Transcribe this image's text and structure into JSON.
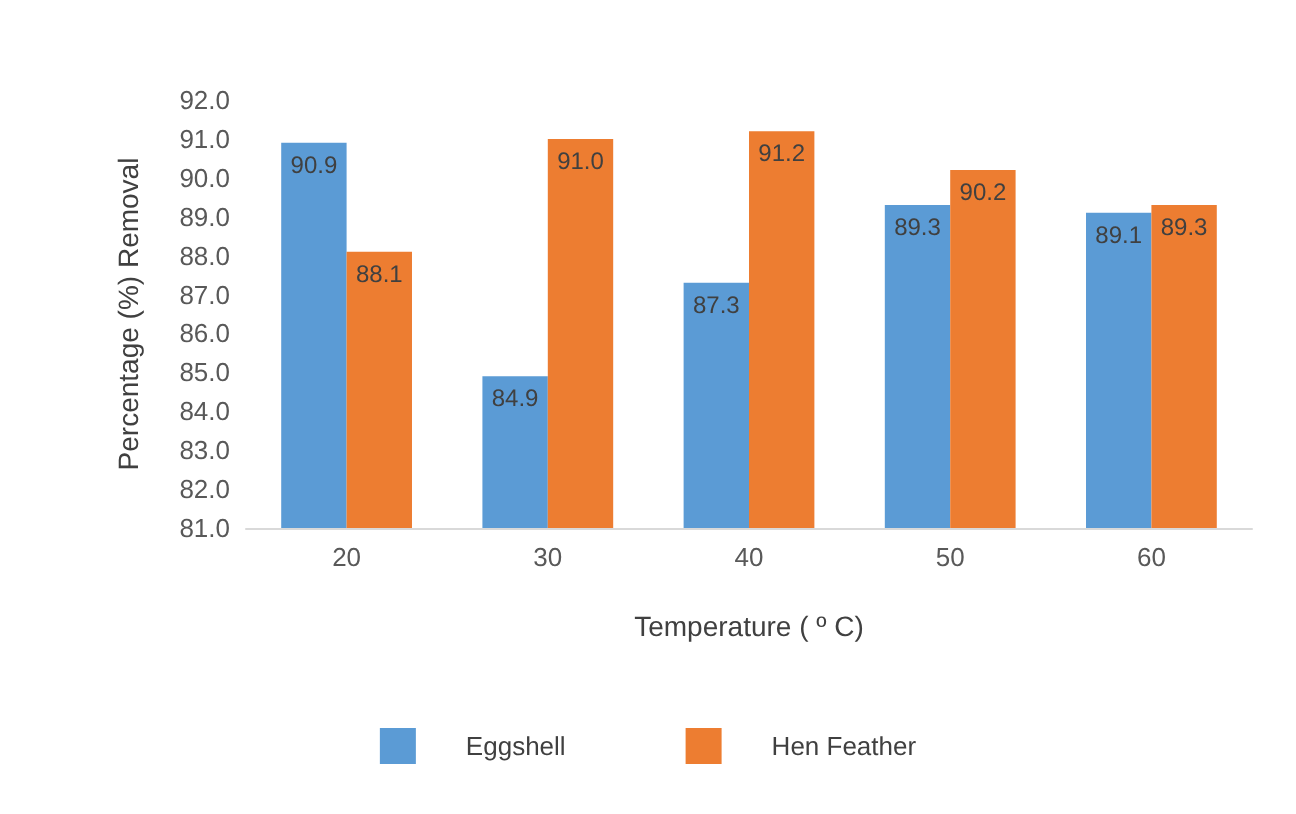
{
  "chart_data": {
    "type": "bar",
    "xlabel": "Temperature ( º C)",
    "ylabel": "Percentage (%) Removal",
    "categories": [
      "20",
      "30",
      "40",
      "50",
      "60"
    ],
    "series": [
      {
        "name": "Eggshell",
        "color": "#5b9bd5",
        "values": [
          90.9,
          84.9,
          87.3,
          89.3,
          89.1
        ],
        "value_labels": [
          "90.9",
          "84.9",
          "87.3",
          "89.3",
          "89.1"
        ]
      },
      {
        "name": "Hen Feather",
        "color": "#ed7d31",
        "values": [
          88.1,
          91.0,
          91.2,
          90.2,
          89.3
        ],
        "value_labels": [
          "88.1",
          "91.0",
          "91.2",
          "90.2",
          "89.3"
        ]
      }
    ],
    "ylim": [
      81,
      92
    ],
    "yticks": [
      {
        "value": 81,
        "label": "81.0"
      },
      {
        "value": 82,
        "label": "82.0"
      },
      {
        "value": 83,
        "label": "83.0"
      },
      {
        "value": 84,
        "label": "84.0"
      },
      {
        "value": 85,
        "label": "85.0"
      },
      {
        "value": 86,
        "label": "86.0"
      },
      {
        "value": 87,
        "label": "87.0"
      },
      {
        "value": 88,
        "label": "88.0"
      },
      {
        "value": 89,
        "label": "89.0"
      },
      {
        "value": 90,
        "label": "90.0"
      },
      {
        "value": 91,
        "label": "91.0"
      },
      {
        "value": 92,
        "label": "92.0"
      }
    ],
    "grid": false,
    "legend": "bottom"
  }
}
